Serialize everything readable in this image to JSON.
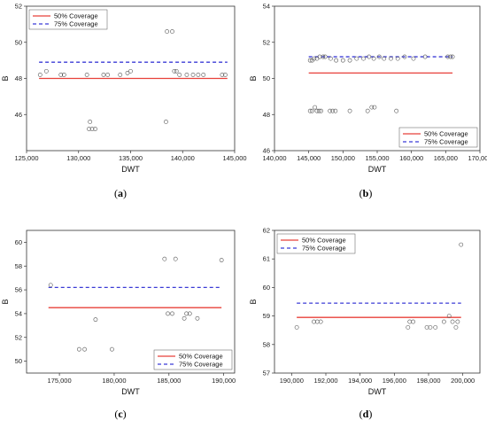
{
  "chart_data": [
    {
      "id": "a",
      "type": "scatter",
      "panel_label": "(a)",
      "xlabel": "DWT",
      "ylabel": "B",
      "xlim": [
        125000,
        145000
      ],
      "ylim": [
        44,
        52
      ],
      "xticks": [
        125000,
        130000,
        135000,
        140000,
        145000
      ],
      "xtick_labels": [
        "125,000",
        "130,000",
        "135,000",
        "140,000",
        "145,000"
      ],
      "yticks": [
        46,
        48,
        50,
        52
      ],
      "ytick_labels": [
        "46",
        "48",
        "50",
        "52"
      ],
      "legend_position": "top-left",
      "series": [
        {
          "name": "50% Coverage",
          "kind": "line",
          "style": "solid",
          "color": "#e8403a",
          "y": 48.0,
          "x_range": [
            126200,
            144300
          ]
        },
        {
          "name": "75% Coverage",
          "kind": "line",
          "style": "dashed",
          "color": "#3b3bd6",
          "y": 48.9,
          "x_range": [
            126200,
            144300
          ]
        },
        {
          "kind": "points",
          "points": [
            [
              126300,
              48.2
            ],
            [
              126900,
              48.4
            ],
            [
              128300,
              48.2
            ],
            [
              128600,
              48.2
            ],
            [
              130800,
              48.2
            ],
            [
              131100,
              45.6
            ],
            [
              131000,
              45.2
            ],
            [
              131300,
              45.2
            ],
            [
              131600,
              45.2
            ],
            [
              132400,
              48.2
            ],
            [
              132800,
              48.2
            ],
            [
              134000,
              48.2
            ],
            [
              134700,
              48.3
            ],
            [
              135000,
              48.4
            ],
            [
              138400,
              45.6
            ],
            [
              138500,
              50.6
            ],
            [
              139000,
              50.6
            ],
            [
              139200,
              48.4
            ],
            [
              139400,
              48.4
            ],
            [
              139700,
              48.2
            ],
            [
              140400,
              48.2
            ],
            [
              141000,
              48.2
            ],
            [
              141500,
              48.2
            ],
            [
              142000,
              48.2
            ],
            [
              143800,
              48.2
            ],
            [
              144100,
              48.2
            ]
          ]
        }
      ]
    },
    {
      "id": "b",
      "type": "scatter",
      "panel_label": "(b)",
      "xlabel": "DWT",
      "ylabel": "B",
      "xlim": [
        140000,
        170000
      ],
      "ylim": [
        46,
        54
      ],
      "xticks": [
        140000,
        145000,
        150000,
        155000,
        160000,
        165000,
        170000
      ],
      "xtick_labels": [
        "140,000",
        "145,000",
        "150,000",
        "155,000",
        "160,000",
        "165,000",
        "170,000"
      ],
      "yticks": [
        46,
        48,
        50,
        52,
        54
      ],
      "ytick_labels": [
        "46",
        "48",
        "50",
        "52",
        "54"
      ],
      "legend_position": "bottom-right",
      "series": [
        {
          "name": "50% Coverage",
          "kind": "line",
          "style": "solid",
          "color": "#e8403a",
          "y": 50.3,
          "x_range": [
            145000,
            166000
          ]
        },
        {
          "name": "75% Coverage",
          "kind": "line",
          "style": "dashed",
          "color": "#3b3bd6",
          "y": 51.2,
          "x_range": [
            145000,
            166000
          ]
        },
        {
          "kind": "points",
          "points": [
            [
              145200,
              51.0
            ],
            [
              145500,
              51.0
            ],
            [
              145800,
              51.1
            ],
            [
              146200,
              51.1
            ],
            [
              146600,
              51.2
            ],
            [
              147100,
              51.2
            ],
            [
              147400,
              51.2
            ],
            [
              148200,
              51.1
            ],
            [
              149000,
              51.0
            ],
            [
              150000,
              51.0
            ],
            [
              151000,
              51.0
            ],
            [
              152000,
              51.1
            ],
            [
              153000,
              51.1
            ],
            [
              153800,
              51.2
            ],
            [
              154500,
              51.1
            ],
            [
              155300,
              51.2
            ],
            [
              156000,
              51.1
            ],
            [
              157000,
              51.1
            ],
            [
              158000,
              51.1
            ],
            [
              159000,
              51.2
            ],
            [
              160300,
              51.1
            ],
            [
              162000,
              51.2
            ],
            [
              165300,
              51.2
            ],
            [
              165700,
              51.2
            ],
            [
              166000,
              51.2
            ],
            [
              145200,
              48.2
            ],
            [
              145500,
              48.2
            ],
            [
              145900,
              48.4
            ],
            [
              146200,
              48.2
            ],
            [
              146500,
              48.2
            ],
            [
              146800,
              48.2
            ],
            [
              148100,
              48.2
            ],
            [
              148500,
              48.2
            ],
            [
              148900,
              48.2
            ],
            [
              151000,
              48.2
            ],
            [
              153600,
              48.2
            ],
            [
              154200,
              48.4
            ],
            [
              154600,
              48.4
            ],
            [
              157800,
              48.2
            ]
          ]
        }
      ]
    },
    {
      "id": "c",
      "type": "scatter",
      "panel_label": "(c)",
      "xlabel": "DWT",
      "ylabel": "B",
      "xlim": [
        172000,
        191000
      ],
      "ylim": [
        49,
        61
      ],
      "xticks": [
        175000,
        180000,
        185000,
        190000
      ],
      "xtick_labels": [
        "175,000",
        "180,000",
        "185,000",
        "190,000"
      ],
      "yticks": [
        50,
        52,
        54,
        56,
        58,
        60
      ],
      "ytick_labels": [
        "50",
        "52",
        "54",
        "56",
        "58",
        "60"
      ],
      "legend_position": "bottom-right",
      "series": [
        {
          "name": "50% Coverage",
          "kind": "line",
          "style": "solid",
          "color": "#e8403a",
          "y": 54.5,
          "x_range": [
            174000,
            189800
          ]
        },
        {
          "name": "75% Coverage",
          "kind": "line",
          "style": "dashed",
          "color": "#3b3bd6",
          "y": 56.2,
          "x_range": [
            174000,
            189800
          ]
        },
        {
          "kind": "points",
          "points": [
            [
              174200,
              56.4
            ],
            [
              176800,
              51.0
            ],
            [
              177300,
              51.0
            ],
            [
              178300,
              53.5
            ],
            [
              179800,
              51.0
            ],
            [
              184600,
              58.6
            ],
            [
              184900,
              54.0
            ],
            [
              185300,
              54.0
            ],
            [
              185600,
              58.6
            ],
            [
              186400,
              53.6
            ],
            [
              186600,
              54.0
            ],
            [
              186900,
              54.0
            ],
            [
              187600,
              53.6
            ],
            [
              189800,
              58.5
            ]
          ]
        }
      ]
    },
    {
      "id": "d",
      "type": "scatter",
      "panel_label": "(d)",
      "xlabel": "DWT",
      "ylabel": "B",
      "xlim": [
        189000,
        201000
      ],
      "ylim": [
        57,
        62
      ],
      "xticks": [
        190000,
        192000,
        194000,
        196000,
        198000,
        200000
      ],
      "xtick_labels": [
        "190,000",
        "192,000",
        "194,000",
        "196,000",
        "198,000",
        "200,000"
      ],
      "yticks": [
        57,
        58,
        59,
        60,
        61,
        62
      ],
      "ytick_labels": [
        "57",
        "58",
        "59",
        "60",
        "61",
        "62"
      ],
      "legend_position": "top-left",
      "series": [
        {
          "name": "50% Coverage",
          "kind": "line",
          "style": "solid",
          "color": "#e8403a",
          "y": 58.95,
          "x_range": [
            190300,
            199900
          ]
        },
        {
          "name": "75% Coverage",
          "kind": "line",
          "style": "dashed",
          "color": "#3b3bd6",
          "y": 59.45,
          "x_range": [
            190300,
            199900
          ]
        },
        {
          "kind": "points",
          "points": [
            [
              190300,
              58.6
            ],
            [
              191300,
              58.8
            ],
            [
              191500,
              58.8
            ],
            [
              191700,
              58.8
            ],
            [
              196800,
              58.6
            ],
            [
              196900,
              58.8
            ],
            [
              197100,
              58.8
            ],
            [
              197900,
              58.6
            ],
            [
              198100,
              58.6
            ],
            [
              198400,
              58.6
            ],
            [
              198900,
              58.8
            ],
            [
              199200,
              59.0
            ],
            [
              199400,
              58.8
            ],
            [
              199600,
              58.6
            ],
            [
              199700,
              58.8
            ],
            [
              199900,
              61.5
            ]
          ]
        }
      ]
    }
  ]
}
